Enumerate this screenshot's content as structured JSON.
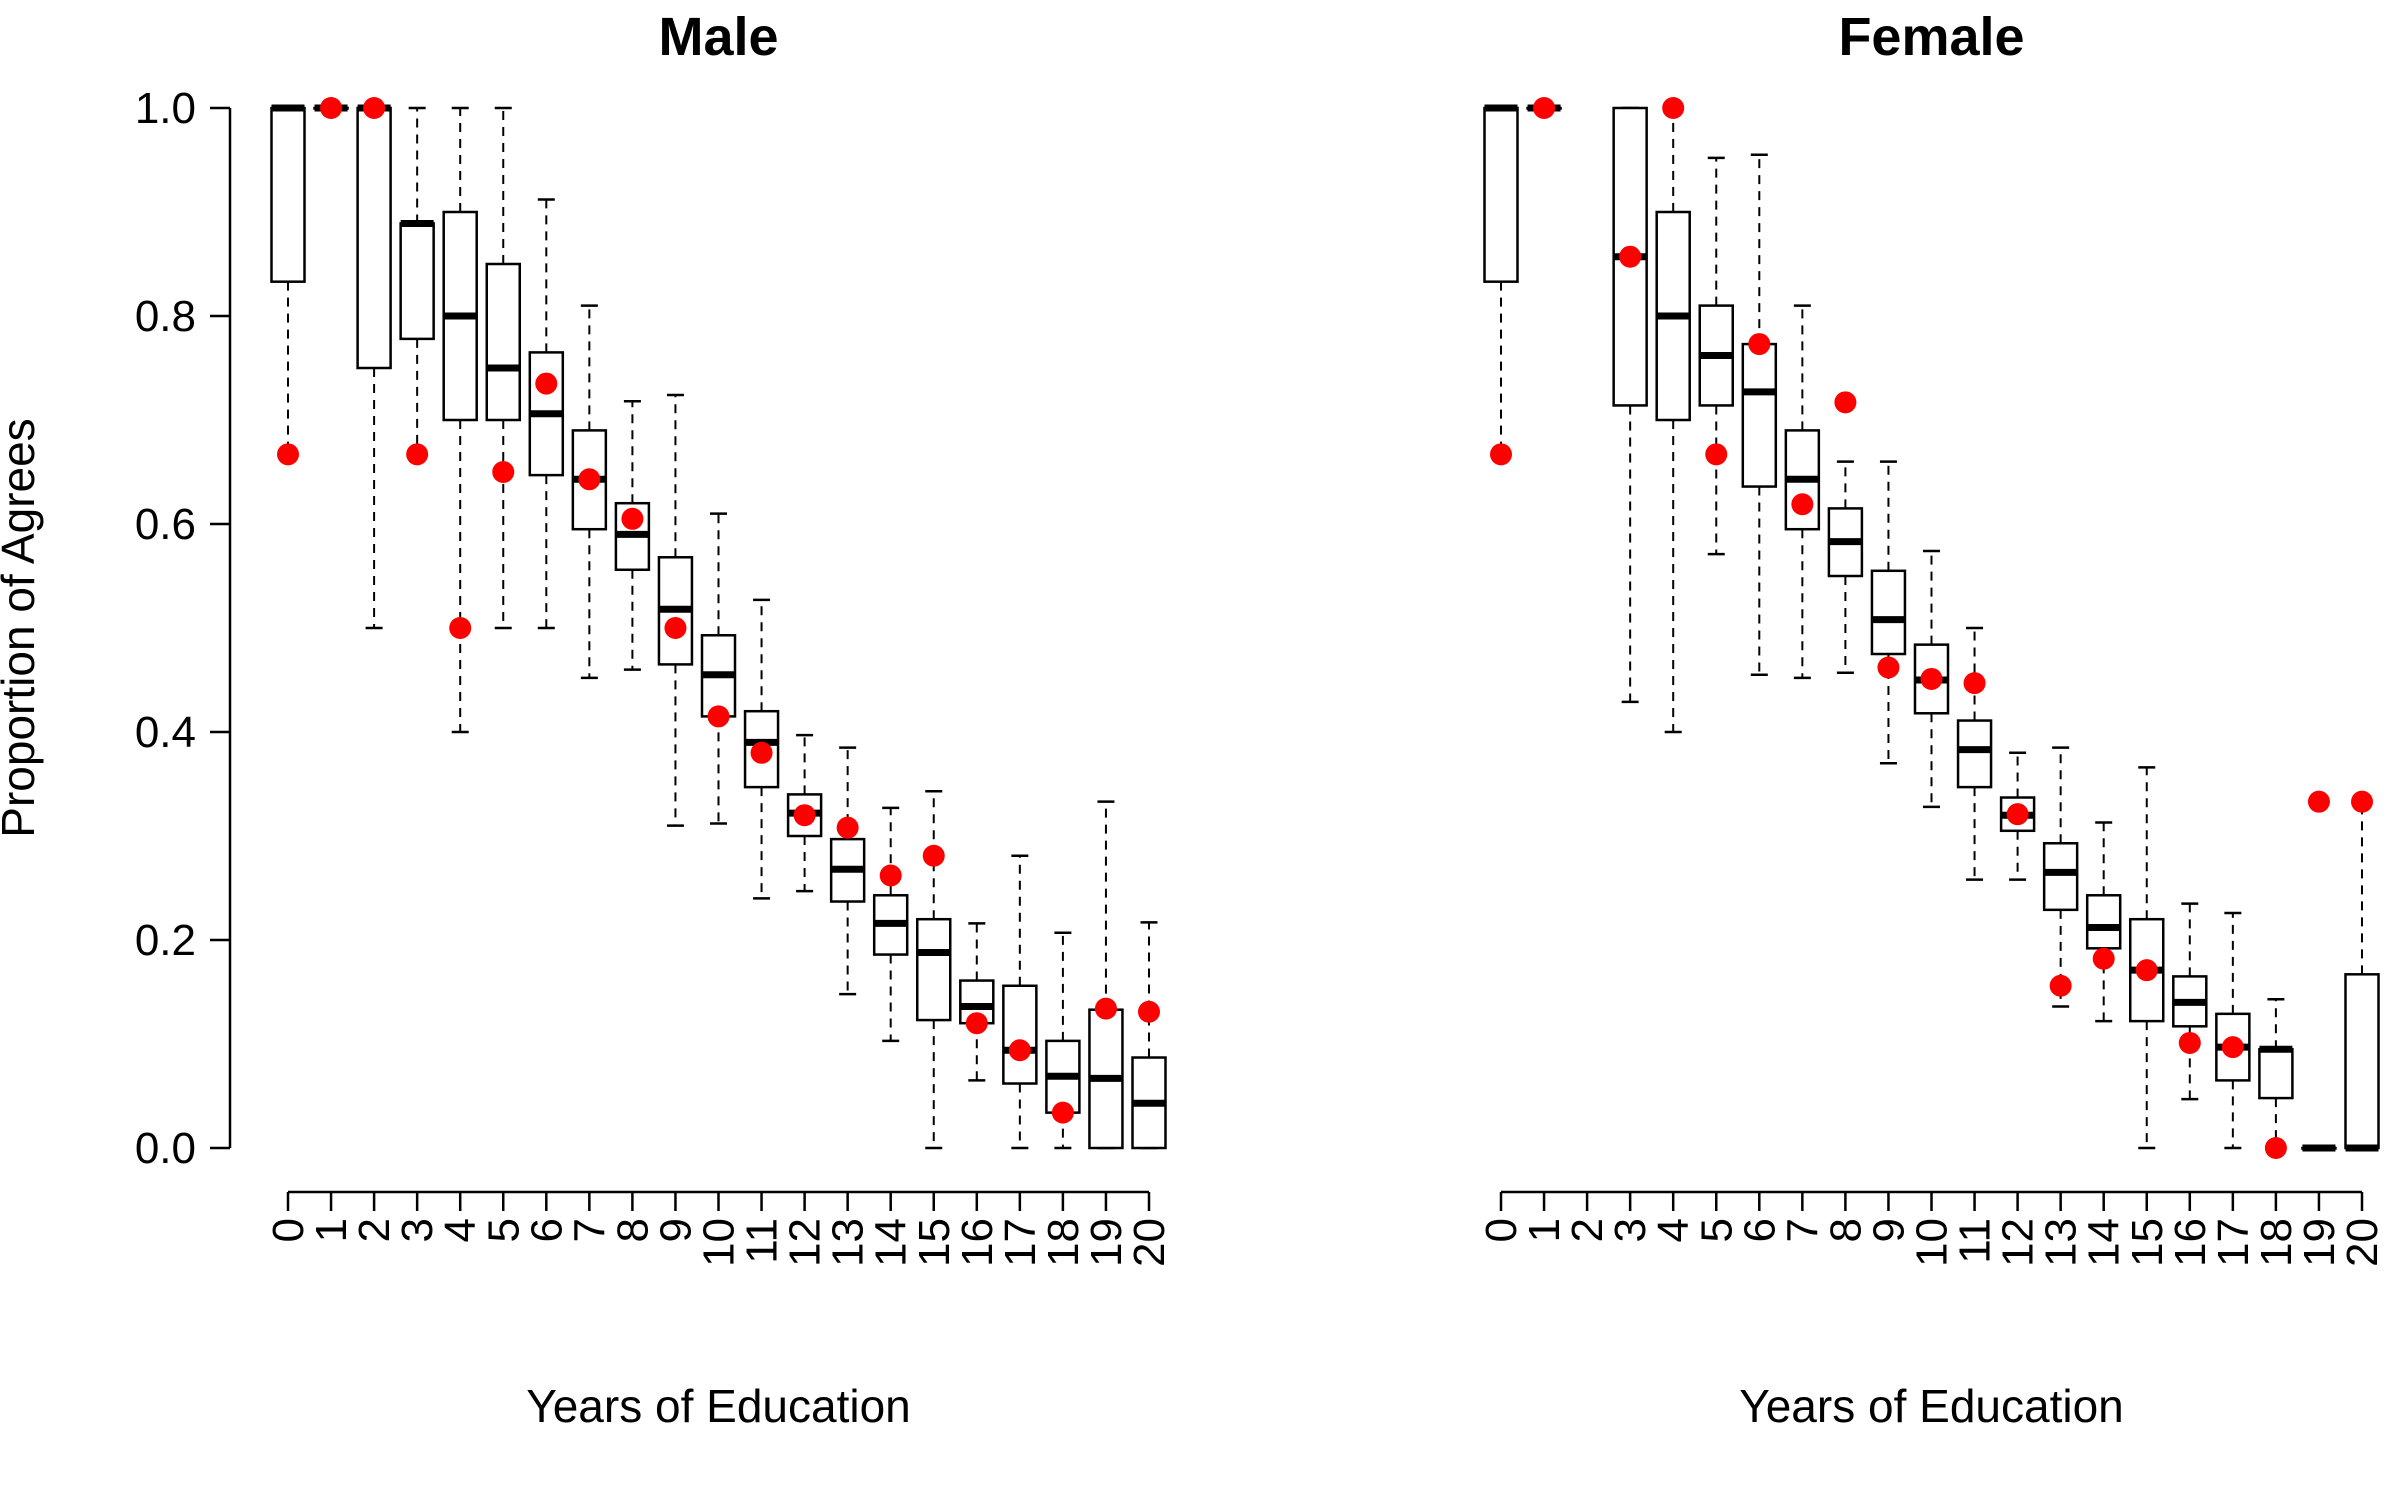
{
  "chart_data": [
    {
      "type": "boxplot",
      "title": "Male",
      "xlabel": "Years of Education",
      "ylabel": "Proportion of Agrees",
      "ylim": [
        0,
        1
      ],
      "yticks": [
        "0.0",
        "0.2",
        "0.4",
        "0.6",
        "0.8",
        "1.0"
      ],
      "categories": [
        "0",
        "1",
        "2",
        "3",
        "4",
        "5",
        "6",
        "7",
        "8",
        "9",
        "10",
        "11",
        "12",
        "13",
        "14",
        "15",
        "16",
        "17",
        "18",
        "19",
        "20"
      ],
      "boxes": [
        {
          "whisker_low": 0.667,
          "q1": 0.833,
          "median": 1.0,
          "q3": 1.0,
          "whisker_high": 1.0
        },
        {
          "whisker_low": 1.0,
          "q1": 1.0,
          "median": 1.0,
          "q3": 1.0,
          "whisker_high": 1.0
        },
        {
          "whisker_low": 0.5,
          "q1": 0.75,
          "median": 1.0,
          "q3": 1.0,
          "whisker_high": 1.0
        },
        {
          "whisker_low": 0.667,
          "q1": 0.778,
          "median": 0.889,
          "q3": 0.889,
          "whisker_high": 1.0
        },
        {
          "whisker_low": 0.4,
          "q1": 0.7,
          "median": 0.8,
          "q3": 0.9,
          "whisker_high": 1.0
        },
        {
          "whisker_low": 0.5,
          "q1": 0.7,
          "median": 0.75,
          "q3": 0.85,
          "whisker_high": 1.0
        },
        {
          "whisker_low": 0.5,
          "q1": 0.647,
          "median": 0.706,
          "q3": 0.765,
          "whisker_high": 0.912
        },
        {
          "whisker_low": 0.452,
          "q1": 0.595,
          "median": 0.643,
          "q3": 0.69,
          "whisker_high": 0.81
        },
        {
          "whisker_low": 0.46,
          "q1": 0.556,
          "median": 0.59,
          "q3": 0.62,
          "whisker_high": 0.718
        },
        {
          "whisker_low": 0.31,
          "q1": 0.465,
          "median": 0.518,
          "q3": 0.568,
          "whisker_high": 0.724
        },
        {
          "whisker_low": 0.312,
          "q1": 0.415,
          "median": 0.455,
          "q3": 0.493,
          "whisker_high": 0.61
        },
        {
          "whisker_low": 0.24,
          "q1": 0.347,
          "median": 0.39,
          "q3": 0.42,
          "whisker_high": 0.527
        },
        {
          "whisker_low": 0.247,
          "q1": 0.3,
          "median": 0.322,
          "q3": 0.34,
          "whisker_high": 0.397
        },
        {
          "whisker_low": 0.148,
          "q1": 0.237,
          "median": 0.268,
          "q3": 0.297,
          "whisker_high": 0.385
        },
        {
          "whisker_low": 0.103,
          "q1": 0.186,
          "median": 0.216,
          "q3": 0.243,
          "whisker_high": 0.327
        },
        {
          "whisker_low": 0.0,
          "q1": 0.123,
          "median": 0.188,
          "q3": 0.22,
          "whisker_high": 0.343
        },
        {
          "whisker_low": 0.065,
          "q1": 0.12,
          "median": 0.136,
          "q3": 0.161,
          "whisker_high": 0.216
        },
        {
          "whisker_low": 0.0,
          "q1": 0.062,
          "median": 0.094,
          "q3": 0.156,
          "whisker_high": 0.281
        },
        {
          "whisker_low": 0.0,
          "q1": 0.034,
          "median": 0.069,
          "q3": 0.103,
          "whisker_high": 0.207
        },
        {
          "whisker_low": 0.0,
          "q1": 0.0,
          "median": 0.067,
          "q3": 0.133,
          "whisker_high": 0.333
        },
        {
          "whisker_low": 0.0,
          "q1": 0.0,
          "median": 0.043,
          "q3": 0.087,
          "whisker_high": 0.217
        }
      ],
      "points": [
        0.667,
        1.0,
        1.0,
        0.667,
        0.5,
        0.65,
        0.735,
        0.643,
        0.605,
        0.5,
        0.415,
        0.38,
        0.32,
        0.308,
        0.262,
        0.281,
        0.12,
        0.094,
        0.034,
        0.134,
        0.131
      ],
      "point_color": "#ff0000",
      "grid": false
    },
    {
      "type": "boxplot",
      "title": "Female",
      "xlabel": "Years of Education",
      "ylabel": "",
      "ylim": [
        0,
        1
      ],
      "categories": [
        "0",
        "1",
        "2",
        "3",
        "4",
        "5",
        "6",
        "7",
        "8",
        "9",
        "10",
        "11",
        "12",
        "13",
        "14",
        "15",
        "16",
        "17",
        "18",
        "19",
        "20"
      ],
      "boxes": [
        {
          "whisker_low": 0.667,
          "q1": 0.833,
          "median": 1.0,
          "q3": 1.0,
          "whisker_high": 1.0
        },
        {
          "whisker_low": 1.0,
          "q1": 1.0,
          "median": 1.0,
          "q3": 1.0,
          "whisker_high": 1.0
        },
        null,
        {
          "whisker_low": 0.429,
          "q1": 0.714,
          "median": 0.857,
          "q3": 1.0,
          "whisker_high": 1.0
        },
        {
          "whisker_low": 0.4,
          "q1": 0.7,
          "median": 0.8,
          "q3": 0.9,
          "whisker_high": 1.0
        },
        {
          "whisker_low": 0.571,
          "q1": 0.714,
          "median": 0.762,
          "q3": 0.81,
          "whisker_high": 0.952
        },
        {
          "whisker_low": 0.455,
          "q1": 0.636,
          "median": 0.727,
          "q3": 0.773,
          "whisker_high": 0.955
        },
        {
          "whisker_low": 0.452,
          "q1": 0.595,
          "median": 0.643,
          "q3": 0.69,
          "whisker_high": 0.81
        },
        {
          "whisker_low": 0.457,
          "q1": 0.55,
          "median": 0.583,
          "q3": 0.615,
          "whisker_high": 0.66
        },
        {
          "whisker_low": 0.37,
          "q1": 0.475,
          "median": 0.508,
          "q3": 0.555,
          "whisker_high": 0.66
        },
        {
          "whisker_low": 0.328,
          "q1": 0.418,
          "median": 0.45,
          "q3": 0.484,
          "whisker_high": 0.574
        },
        {
          "whisker_low": 0.258,
          "q1": 0.347,
          "median": 0.383,
          "q3": 0.411,
          "whisker_high": 0.5
        },
        {
          "whisker_low": 0.258,
          "q1": 0.305,
          "median": 0.32,
          "q3": 0.337,
          "whisker_high": 0.38
        },
        {
          "whisker_low": 0.136,
          "q1": 0.229,
          "median": 0.265,
          "q3": 0.293,
          "whisker_high": 0.385
        },
        {
          "whisker_low": 0.122,
          "q1": 0.192,
          "median": 0.212,
          "q3": 0.243,
          "whisker_high": 0.313
        },
        {
          "whisker_low": 0.0,
          "q1": 0.122,
          "median": 0.171,
          "q3": 0.22,
          "whisker_high": 0.366
        },
        {
          "whisker_low": 0.047,
          "q1": 0.117,
          "median": 0.14,
          "q3": 0.165,
          "whisker_high": 0.235
        },
        {
          "whisker_low": 0.0,
          "q1": 0.065,
          "median": 0.097,
          "q3": 0.129,
          "whisker_high": 0.226
        },
        {
          "whisker_low": 0.0,
          "q1": 0.048,
          "median": 0.095,
          "q3": 0.095,
          "whisker_high": 0.143
        },
        {
          "whisker_low": 0.0,
          "q1": 0.0,
          "median": 0.0,
          "q3": 0.0,
          "whisker_high": 0.0
        },
        {
          "whisker_low": 0.0,
          "q1": 0.0,
          "median": 0.0,
          "q3": 0.167,
          "whisker_high": 0.333
        }
      ],
      "points": [
        0.667,
        1.0,
        null,
        0.857,
        1.0,
        0.667,
        0.773,
        0.619,
        0.717,
        0.462,
        0.451,
        0.447,
        0.321,
        0.156,
        0.182,
        0.171,
        0.101,
        0.097,
        0.0,
        0.333,
        0.333
      ],
      "point_color": "#ff0000",
      "grid": false
    }
  ]
}
